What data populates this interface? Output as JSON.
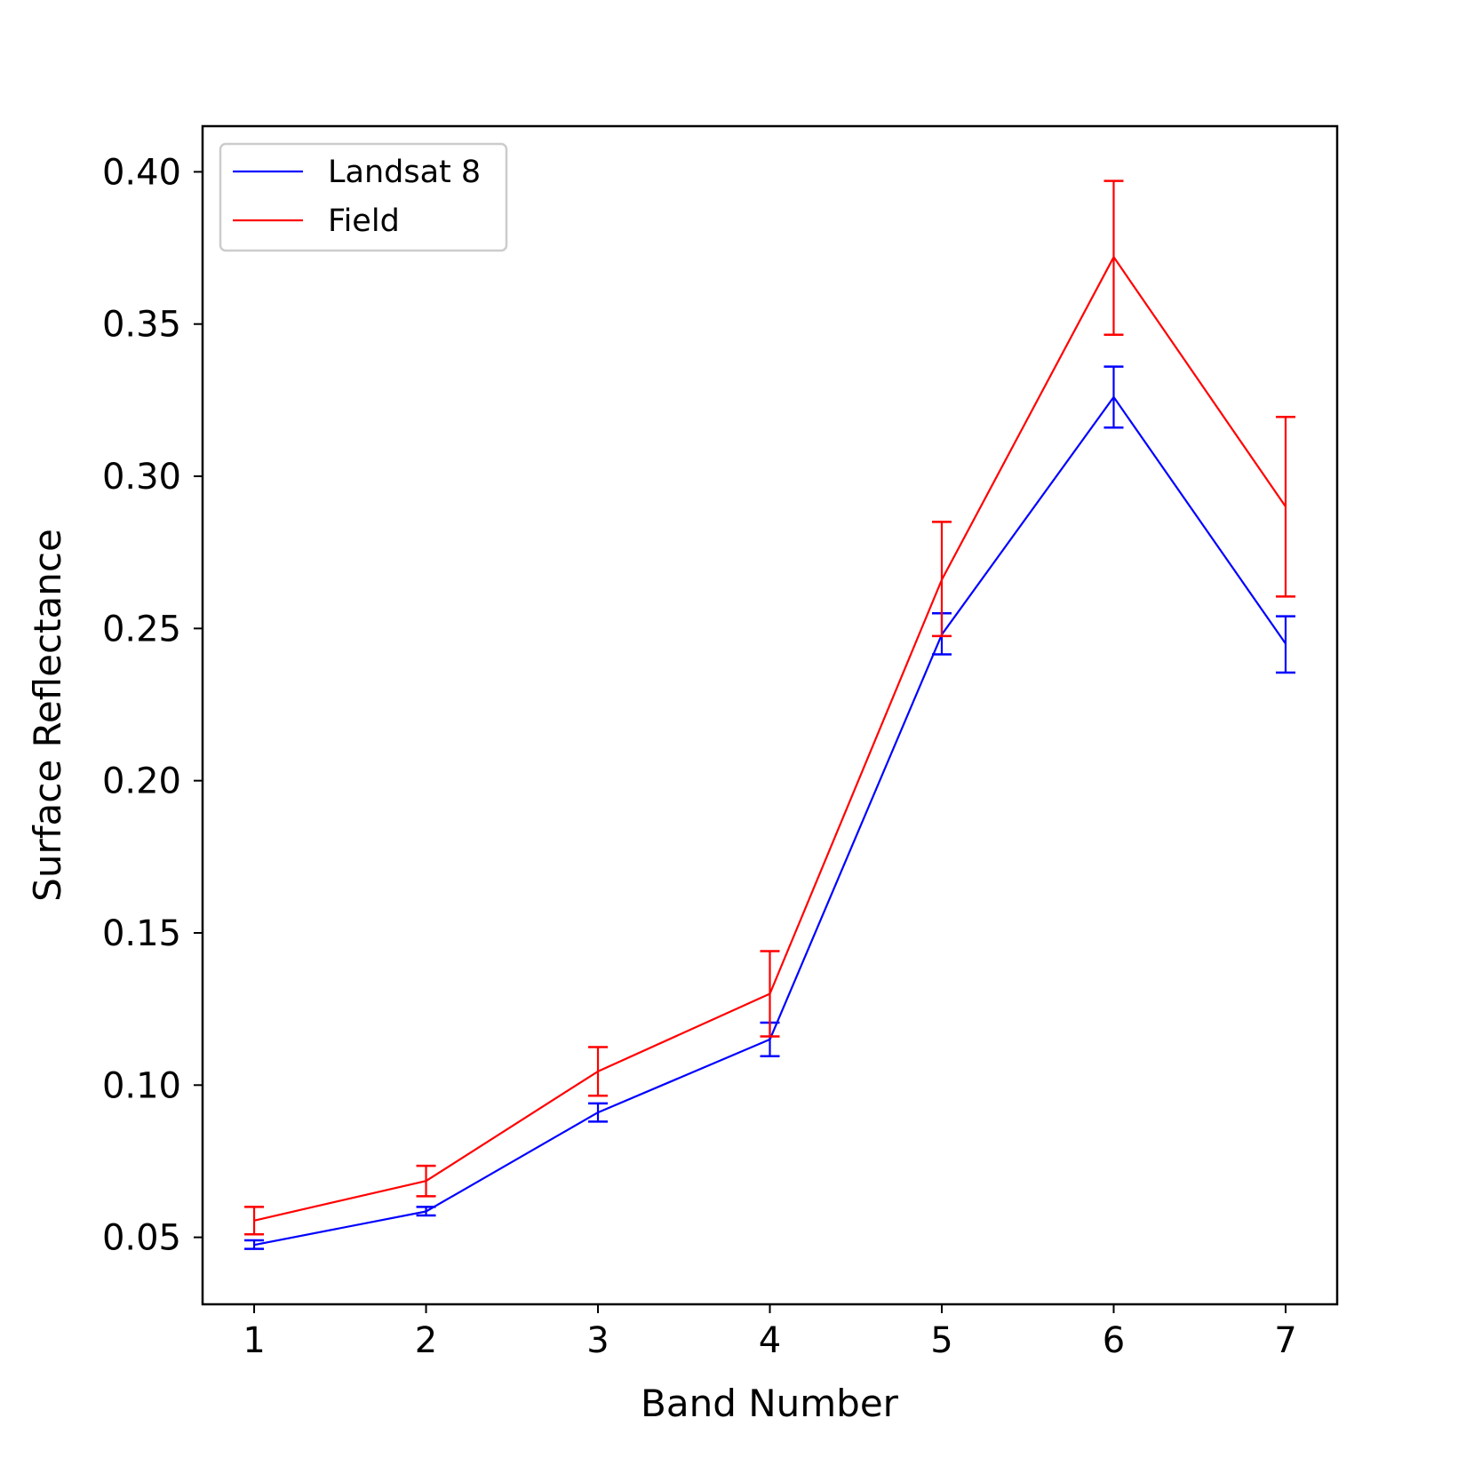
{
  "chart_data": {
    "type": "line",
    "title": "",
    "xlabel": "Band Number",
    "ylabel": "Surface Reflectance",
    "x": [
      1,
      2,
      3,
      4,
      5,
      6,
      7
    ],
    "xticks": [
      "1",
      "2",
      "3",
      "4",
      "5",
      "6",
      "7"
    ],
    "xlim": [
      0.7,
      7.3
    ],
    "yticks": [
      "0.05",
      "0.10",
      "0.15",
      "0.20",
      "0.25",
      "0.30",
      "0.35",
      "0.40"
    ],
    "ylim": [
      0.028,
      0.415
    ],
    "grid": false,
    "legend_position": "top-left",
    "series": [
      {
        "name": "Landsat 8",
        "color": "#0000ff",
        "values": [
          0.0475,
          0.0585,
          0.091,
          0.115,
          0.248,
          0.326,
          0.245
        ],
        "error_low": [
          0.0462,
          0.0572,
          0.088,
          0.1095,
          0.2415,
          0.316,
          0.2355
        ],
        "error_high": [
          0.049,
          0.06,
          0.094,
          0.1205,
          0.255,
          0.336,
          0.254
        ]
      },
      {
        "name": "Field",
        "color": "#ff0000",
        "values": [
          0.0555,
          0.0685,
          0.1045,
          0.13,
          0.266,
          0.372,
          0.29
        ],
        "error_low": [
          0.051,
          0.0635,
          0.0965,
          0.116,
          0.2475,
          0.3465,
          0.2605
        ],
        "error_high": [
          0.06,
          0.0735,
          0.1125,
          0.144,
          0.285,
          0.397,
          0.3195
        ]
      }
    ]
  }
}
